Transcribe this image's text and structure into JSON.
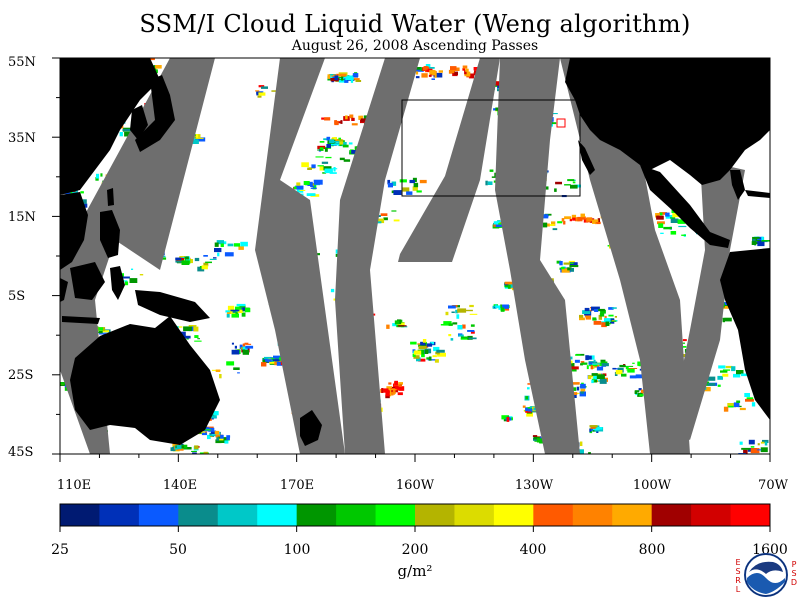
{
  "title": "SSM/I Cloud Liquid Water (Weng algorithm)",
  "subtitle": "August 26, 2008  Ascending Passes",
  "map": {
    "lat_labels": [
      "55N",
      "35N",
      "15N",
      "5S",
      "25S",
      "45S"
    ],
    "lon_labels": [
      "110E",
      "140E",
      "170E",
      "160W",
      "130W",
      "100W",
      "70W"
    ],
    "colors": {
      "land": "#000000",
      "no_data_swath_gap": "#6e6e6e",
      "clear_ocean": "#ffffff",
      "highlight_box": "#000000",
      "marker": "#ff0000"
    }
  },
  "colorbar": {
    "colors": [
      "#001a72",
      "#0030b8",
      "#0a5aff",
      "#0a8c8c",
      "#00c8c8",
      "#00ffff",
      "#009600",
      "#00c800",
      "#00ff00",
      "#b4b400",
      "#dcdc00",
      "#ffff00",
      "#ff5a00",
      "#ff8200",
      "#ffaa00",
      "#a00000",
      "#d20000",
      "#ff0000"
    ],
    "tick_labels": [
      "25",
      "50",
      "100",
      "200",
      "400",
      "800",
      "1600"
    ],
    "unit": "g/m²"
  },
  "logo": {
    "left_letters": [
      "E",
      "S",
      "R",
      "L"
    ],
    "right_letters": [
      "P",
      "S",
      "D"
    ],
    "name": "noaa-logo"
  }
}
